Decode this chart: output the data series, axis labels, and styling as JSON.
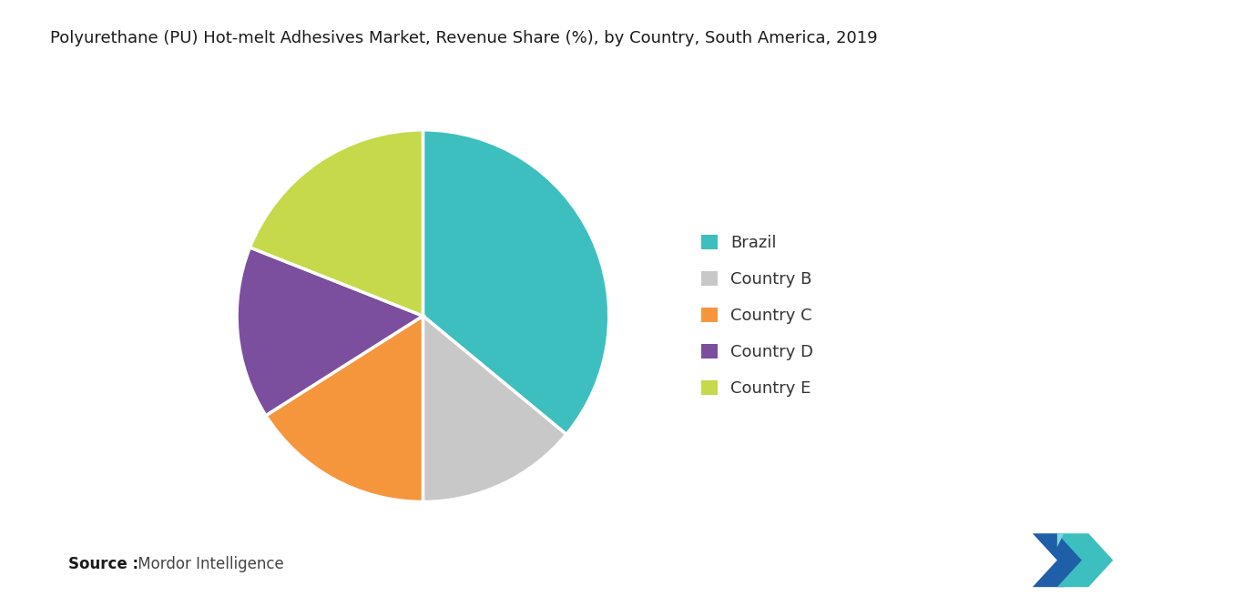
{
  "title": "Polyurethane (PU) Hot-melt Adhesives Market, Revenue Share (%), by Country, South America, 2019",
  "labels": [
    "Brazil",
    "Country B",
    "Country C",
    "Country D",
    "Country E"
  ],
  "sizes": [
    36,
    14,
    16,
    15,
    19
  ],
  "colors": [
    "#3dbfbf",
    "#c8c8c8",
    "#f5963d",
    "#7b4f9e",
    "#c5d94a"
  ],
  "legend_labels": [
    "Brazil",
    "Country B",
    "Country C",
    "Country D",
    "Country E"
  ],
  "source_bold": "Source :",
  "source_rest": " Mordor Intelligence",
  "background_color": "#ffffff",
  "title_fontsize": 13,
  "legend_fontsize": 13,
  "source_fontsize": 12,
  "startangle": 90,
  "pie_edge_color": "#ffffff",
  "pie_linewidth": 2.5
}
